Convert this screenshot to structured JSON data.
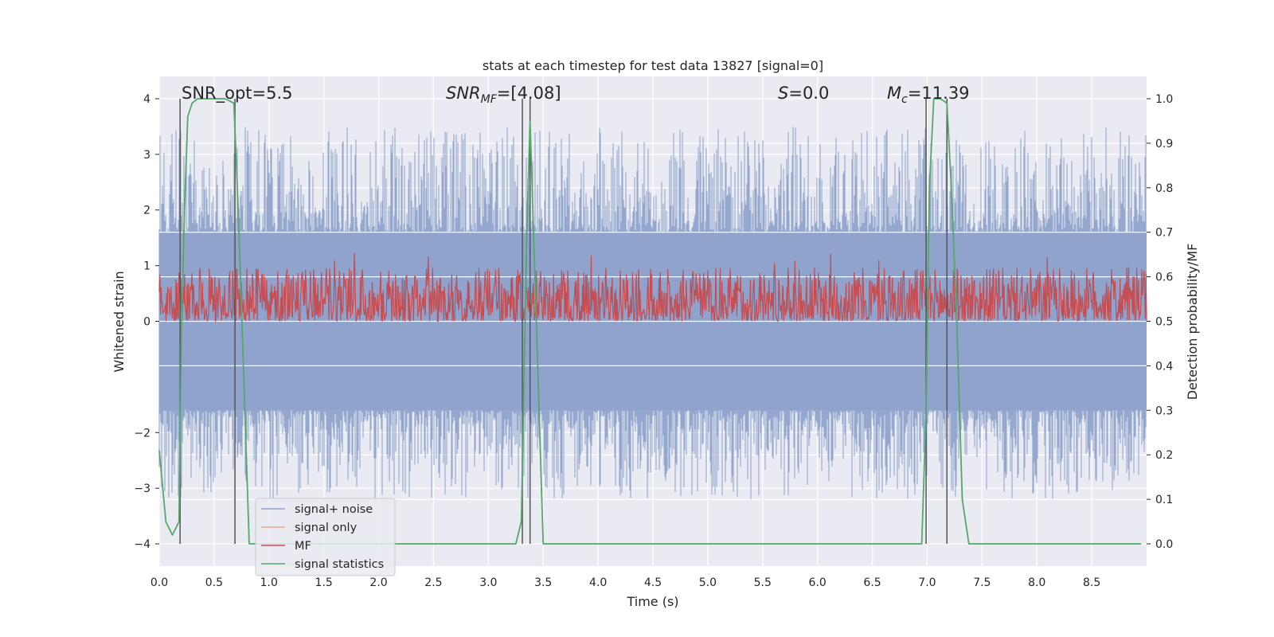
{
  "chart_data": {
    "type": "line",
    "title": "stats at each timestep for test data 13827 [signal=0]",
    "xlabel": "Time (s)",
    "ylabel": "Whitened strain",
    "ylabel_right": "Detection probability/MF",
    "xlim": [
      0.0,
      9.0
    ],
    "ylim": [
      -4.4,
      4.4
    ],
    "ylim_right": [
      -0.05,
      1.05
    ],
    "xticks": [
      "0.0",
      "0.5",
      "1.0",
      "1.5",
      "2.0",
      "2.5",
      "3.0",
      "3.5",
      "4.0",
      "4.5",
      "5.0",
      "5.5",
      "6.0",
      "6.5",
      "7.0",
      "7.5",
      "8.0",
      "8.5"
    ],
    "yticks_left": [
      "4",
      "3",
      "2",
      "1",
      "0",
      "−2",
      "−3",
      "−4"
    ],
    "yticks_right": [
      "1.0",
      "0.9",
      "0.8",
      "0.7",
      "0.6",
      "0.5",
      "0.4",
      "0.3",
      "0.2",
      "0.1",
      "0.0"
    ],
    "grid": true,
    "legend_position": "lower-left",
    "annotations": {
      "snr_opt": "SNR_opt=5.5",
      "snr_mf_main": "SNR",
      "snr_mf_sub": "MF",
      "snr_mf_tail": "=[4.08]",
      "s_var": "S",
      "s_tail": "=0.0",
      "mc_var": "M",
      "mc_sub": "c",
      "mc_tail": "=11.39"
    },
    "vertical_lines_x": [
      0.19,
      0.69,
      3.31,
      3.38,
      6.99,
      7.18
    ],
    "series": [
      {
        "name": "signal+ noise",
        "axis": "left",
        "color": "#8fa3cc",
        "description_values": "dense noise, envelope approx -3.2 to +3.5"
      },
      {
        "name": "signal only",
        "axis": "left",
        "color": "#e8a98c",
        "values": []
      },
      {
        "name": "MF",
        "axis": "right",
        "color": "#c44e52",
        "range": [
          0.5,
          0.62
        ]
      },
      {
        "name": "signal statistics",
        "axis": "right",
        "color": "#55a868",
        "x": [
          0.0,
          0.06,
          0.12,
          0.18,
          0.2,
          0.23,
          0.26,
          0.3,
          0.35,
          0.6,
          0.68,
          0.72,
          0.78,
          0.82,
          0.9,
          3.25,
          3.3,
          3.32,
          3.35,
          3.38,
          3.45,
          3.5,
          3.55,
          6.95,
          6.99,
          7.02,
          7.06,
          7.12,
          7.18,
          7.22,
          7.27,
          7.32,
          7.38,
          7.45,
          8.95
        ],
        "y": [
          0.21,
          0.05,
          0.02,
          0.05,
          0.45,
          0.75,
          0.96,
          0.99,
          1.0,
          1.0,
          0.99,
          0.75,
          0.3,
          0.0,
          0.0,
          0.0,
          0.05,
          0.3,
          0.7,
          0.95,
          0.4,
          0.0,
          0.0,
          0.0,
          0.3,
          0.8,
          1.0,
          1.0,
          0.99,
          0.8,
          0.5,
          0.1,
          0.0,
          0.0,
          0.0
        ]
      }
    ]
  }
}
